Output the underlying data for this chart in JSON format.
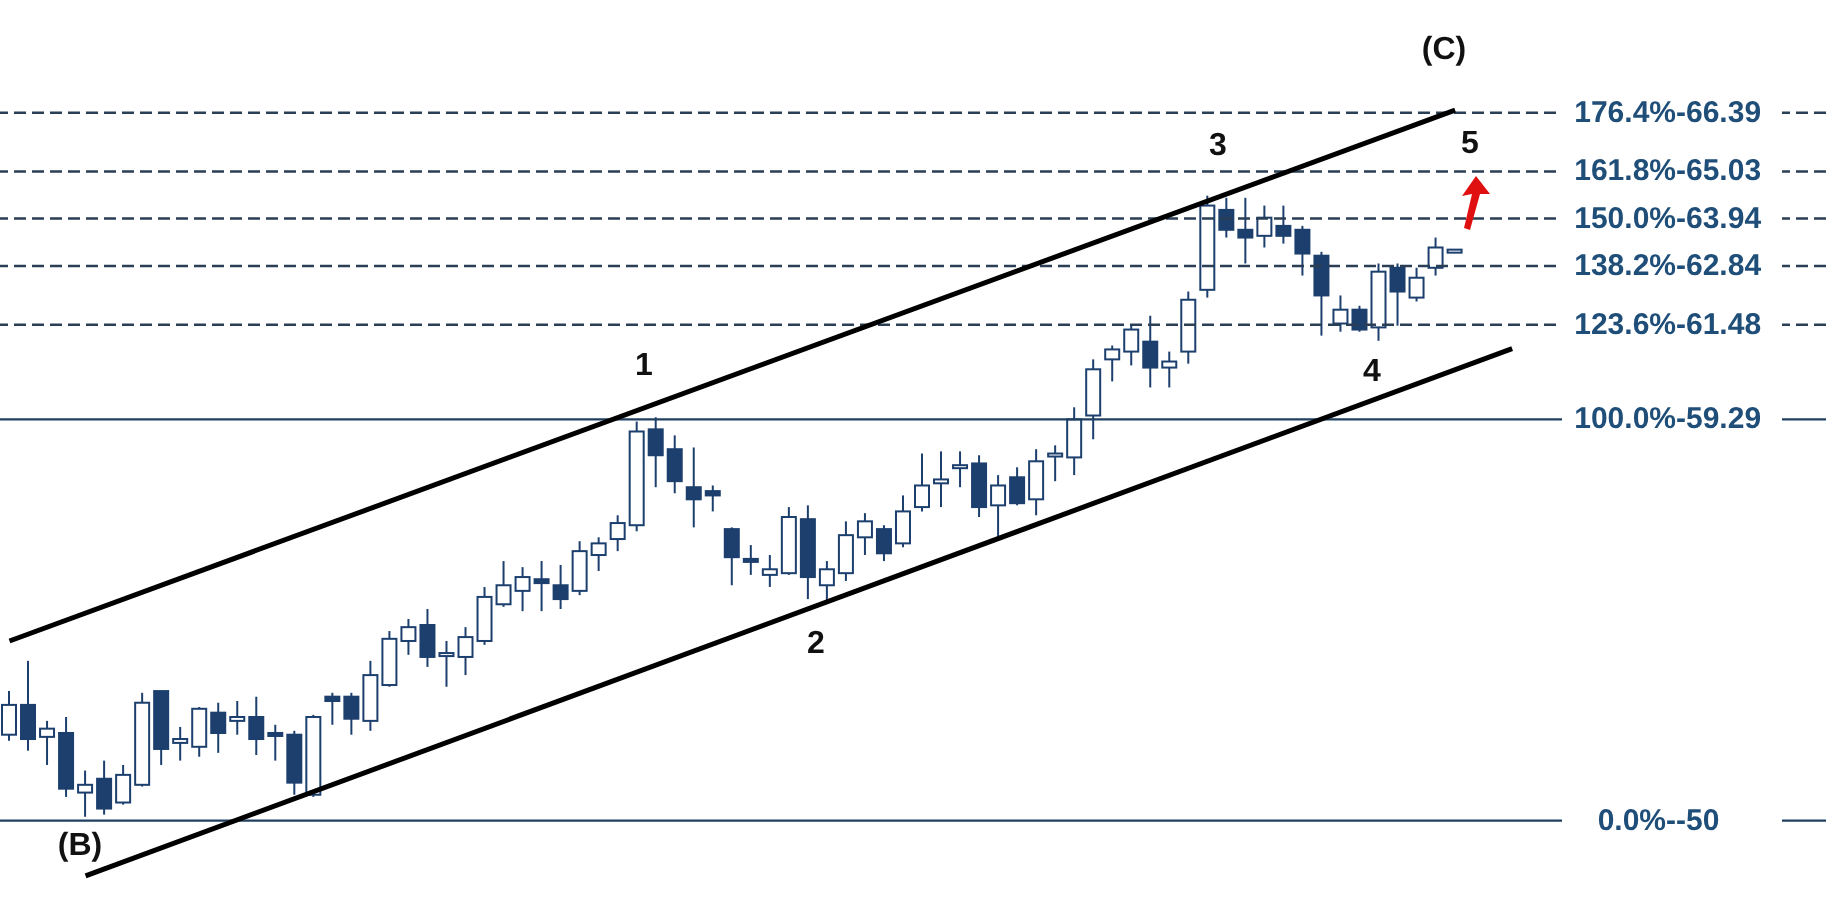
{
  "chart_data": {
    "type": "candlestick",
    "color": "#1c3f6e",
    "tick_labels": "y",
    "grid": false,
    "categories": [
      null,
      null,
      null,
      null,
      null,
      null,
      null,
      null,
      null,
      null,
      null,
      null,
      null,
      null,
      null,
      null,
      null,
      null,
      null,
      null,
      null,
      null,
      null,
      null,
      null,
      null,
      null,
      null,
      null,
      null,
      null,
      null,
      null,
      null,
      null,
      null,
      null,
      null,
      null,
      null,
      null,
      null,
      null,
      null,
      null,
      null,
      null,
      null,
      null,
      null,
      null,
      null,
      null,
      null,
      null,
      null,
      null,
      null,
      null,
      null,
      null,
      null,
      null,
      null,
      null,
      null,
      null,
      null,
      null,
      null,
      null,
      null,
      null,
      null,
      null,
      null,
      null,
      null,
      null,
      null,
      null,
      null,
      null,
      null,
      null,
      null,
      null,
      null,
      null,
      null,
      null,
      null,
      null,
      null,
      null,
      null
    ],
    "ylim": [
      47.7,
      69
    ],
    "yticks": [
      66.39,
      65.03,
      63.94,
      62.84,
      61.48,
      59.29,
      50
    ],
    "ohlc": [
      [
        51.99,
        53.0,
        51.85,
        52.68
      ],
      [
        52.68,
        53.7,
        51.62,
        51.89
      ],
      [
        51.94,
        52.31,
        51.29,
        52.13
      ],
      [
        52.03,
        52.4,
        50.55,
        50.74
      ],
      [
        50.65,
        51.16,
        50.09,
        50.83
      ],
      [
        50.97,
        51.39,
        50.14,
        50.28
      ],
      [
        50.42,
        51.29,
        50.37,
        51.06
      ],
      [
        50.83,
        52.96,
        50.79,
        52.73
      ],
      [
        53.0,
        53.0,
        51.29,
        51.66
      ],
      [
        51.8,
        52.17,
        51.39,
        51.89
      ],
      [
        51.71,
        52.63,
        51.48,
        52.59
      ],
      [
        52.5,
        52.73,
        51.57,
        52.03
      ],
      [
        52.31,
        52.77,
        51.99,
        52.4
      ],
      [
        52.4,
        52.87,
        51.52,
        51.89
      ],
      [
        52.03,
        52.22,
        51.39,
        51.99
      ],
      [
        51.99,
        52.08,
        50.6,
        50.88
      ],
      [
        50.6,
        52.45,
        50.55,
        52.4
      ],
      [
        52.87,
        52.96,
        52.22,
        52.77
      ],
      [
        52.87,
        52.96,
        51.99,
        52.36
      ],
      [
        52.31,
        53.7,
        52.08,
        53.37
      ],
      [
        53.14,
        54.39,
        53.1,
        54.21
      ],
      [
        54.16,
        54.67,
        53.84,
        54.48
      ],
      [
        54.53,
        54.9,
        53.56,
        53.79
      ],
      [
        53.84,
        54.16,
        53.1,
        53.88
      ],
      [
        53.79,
        54.48,
        53.37,
        54.25
      ],
      [
        54.16,
        55.41,
        54.07,
        55.18
      ],
      [
        55.01,
        56.01,
        54.95,
        55.45
      ],
      [
        55.32,
        55.87,
        54.85,
        55.64
      ],
      [
        55.59,
        56.01,
        54.85,
        55.5
      ],
      [
        55.45,
        55.92,
        54.9,
        55.13
      ],
      [
        55.32,
        56.47,
        55.22,
        56.24
      ],
      [
        56.15,
        56.56,
        55.78,
        56.42
      ],
      [
        56.52,
        57.07,
        56.24,
        56.89
      ],
      [
        56.84,
        59.24,
        56.7,
        59.01
      ],
      [
        59.06,
        59.34,
        57.72,
        58.46
      ],
      [
        58.6,
        58.92,
        57.58,
        57.86
      ],
      [
        57.72,
        58.64,
        56.79,
        57.44
      ],
      [
        57.63,
        57.76,
        57.16,
        57.53
      ],
      [
        56.75,
        56.79,
        55.45,
        56.1
      ],
      [
        56.06,
        56.38,
        55.69,
        56.01
      ],
      [
        55.69,
        56.15,
        55.41,
        55.82
      ],
      [
        55.73,
        57.26,
        55.69,
        57.03
      ],
      [
        56.98,
        57.3,
        55.13,
        55.64
      ],
      [
        55.45,
        56.01,
        55.08,
        55.82
      ],
      [
        55.73,
        56.93,
        55.55,
        56.61
      ],
      [
        56.56,
        57.12,
        56.15,
        56.93
      ],
      [
        56.75,
        56.84,
        56.01,
        56.19
      ],
      [
        56.42,
        57.53,
        56.33,
        57.16
      ],
      [
        57.26,
        58.5,
        57.16,
        57.76
      ],
      [
        57.81,
        58.55,
        57.26,
        57.9
      ],
      [
        58.18,
        58.55,
        57.72,
        58.23
      ],
      [
        58.27,
        58.46,
        57.03,
        57.26
      ],
      [
        57.3,
        58.0,
        56.56,
        57.76
      ],
      [
        57.95,
        58.18,
        57.3,
        57.35
      ],
      [
        57.44,
        58.6,
        57.07,
        58.32
      ],
      [
        58.46,
        58.69,
        57.86,
        58.5
      ],
      [
        58.41,
        59.57,
        58.0,
        59.29
      ],
      [
        59.38,
        60.68,
        58.83,
        60.45
      ],
      [
        60.68,
        61.0,
        60.17,
        60.91
      ],
      [
        60.86,
        61.46,
        60.54,
        61.37
      ],
      [
        61.09,
        61.69,
        60.03,
        60.49
      ],
      [
        60.49,
        60.86,
        60.03,
        60.63
      ],
      [
        60.86,
        62.25,
        60.58,
        62.06
      ],
      [
        62.29,
        64.47,
        62.11,
        64.24
      ],
      [
        64.14,
        64.42,
        63.5,
        63.68
      ],
      [
        63.68,
        64.42,
        62.9,
        63.5
      ],
      [
        63.54,
        64.24,
        63.27,
        63.96
      ],
      [
        63.77,
        64.24,
        63.36,
        63.54
      ],
      [
        63.68,
        63.77,
        62.62,
        63.13
      ],
      [
        63.08,
        63.17,
        61.23,
        62.16
      ],
      [
        61.51,
        62.16,
        61.32,
        61.83
      ],
      [
        61.83,
        61.92,
        61.32,
        61.37
      ],
      [
        61.42,
        62.9,
        61.11,
        62.71
      ],
      [
        62.8,
        62.9,
        61.46,
        62.25
      ],
      [
        62.11,
        62.8,
        62.02,
        62.57
      ],
      [
        62.8,
        63.5,
        62.62,
        63.27
      ],
      [
        63.22,
        63.22,
        63.22,
        63.22
      ],
      null,
      null,
      null,
      null,
      null,
      null,
      null,
      null,
      null,
      null,
      null,
      null,
      null,
      null,
      null,
      null,
      null,
      null,
      null
    ],
    "series": [
      {
        "type": "line",
        "color": "#000000",
        "marker": "none",
        "values": [
          54.16,
          null,
          null,
          null,
          null,
          null,
          null,
          null,
          null,
          null,
          null,
          null,
          null,
          null,
          null,
          null,
          null,
          null,
          null,
          null,
          null,
          null,
          null,
          null,
          null,
          null,
          null,
          null,
          null,
          null,
          null,
          null,
          null,
          null,
          null,
          null,
          null,
          null,
          null,
          null,
          null,
          null,
          null,
          null,
          null,
          null,
          null,
          null,
          null,
          null,
          null,
          null,
          null,
          null,
          null,
          null,
          null,
          null,
          null,
          null,
          null,
          null,
          null,
          null,
          null,
          null,
          null,
          null,
          null,
          null,
          null,
          null,
          null,
          null,
          null,
          null,
          66.45,
          null,
          null,
          null,
          null,
          null,
          null,
          null,
          null,
          null,
          null,
          null,
          null,
          null,
          null,
          null,
          null,
          null,
          null,
          null
        ]
      },
      {
        "type": "line",
        "color": "#000000",
        "marker": "none",
        "values": [
          null,
          null,
          null,
          null,
          48.72,
          null,
          null,
          null,
          null,
          null,
          null,
          null,
          null,
          null,
          null,
          null,
          null,
          null,
          null,
          null,
          null,
          null,
          null,
          null,
          null,
          null,
          null,
          null,
          null,
          null,
          null,
          null,
          null,
          null,
          null,
          null,
          null,
          null,
          null,
          null,
          null,
          null,
          null,
          null,
          null,
          null,
          null,
          null,
          null,
          null,
          null,
          null,
          null,
          null,
          null,
          null,
          null,
          null,
          null,
          null,
          null,
          null,
          null,
          null,
          null,
          null,
          null,
          null,
          null,
          null,
          null,
          null,
          null,
          null,
          null,
          null,
          null,
          null,
          null,
          60.93,
          null,
          null,
          null,
          null,
          null,
          null,
          null,
          null,
          null,
          null,
          null,
          null,
          null,
          null,
          null,
          null
        ]
      }
    ],
    "ref_lines": [
      {
        "axis": "y",
        "value": 66.39,
        "color": "#2a3f55",
        "line_style": "dashed"
      },
      {
        "axis": "y",
        "value": 65.03,
        "color": "#2a3f55",
        "line_style": "dashed"
      },
      {
        "axis": "y",
        "value": 63.94,
        "color": "#2a3f55",
        "line_style": "dashed"
      },
      {
        "axis": "y",
        "value": 62.84,
        "color": "#2a3f55",
        "line_style": "dashed"
      },
      {
        "axis": "y",
        "value": 61.48,
        "color": "#2a3f55",
        "line_style": "dashed"
      },
      {
        "axis": "y",
        "value": 59.29,
        "color": "#1f4060",
        "line_style": "solid"
      },
      {
        "axis": "y",
        "value": 50,
        "color": "#1f4060",
        "line_style": "solid"
      }
    ],
    "annotations": [
      "(C)",
      "1",
      "2",
      "3",
      "4",
      "5",
      "(B)",
      {
        "text": "176.4%-",
        "y": 66.39
      },
      {
        "text": "161.8%-",
        "y": 65.03
      },
      {
        "text": "150.0%-",
        "y": 63.94
      },
      {
        "text": "138.2%-",
        "y": 62.84
      },
      {
        "text": "123.6%-",
        "y": 61.48
      },
      {
        "text": "100.0%-",
        "y": 59.29
      },
      {
        "text": "0.0%--",
        "y": 50
      }
    ]
  }
}
